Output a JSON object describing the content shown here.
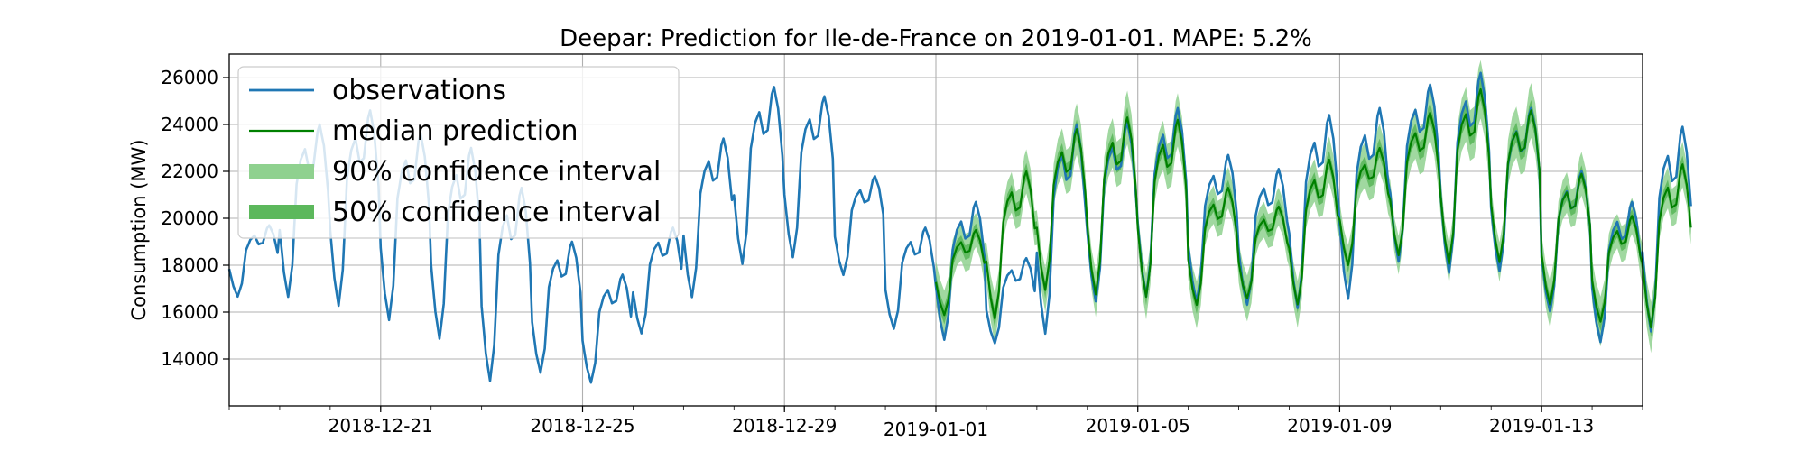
{
  "chart_data": {
    "type": "line",
    "title": "Deepar: Prediction for Ile-de-France on 2019-01-01. MAPE: 5.2%",
    "xlabel": "",
    "ylabel": "Consumption (MW)",
    "x_range": [
      "2018-12-18",
      "2019-01-15"
    ],
    "ylim": [
      12000,
      27000
    ],
    "y_ticks": [
      14000,
      16000,
      18000,
      20000,
      22000,
      24000,
      26000
    ],
    "x_ticks": [
      "2018-12-21",
      "2018-12-25",
      "2018-12-29",
      "2019-01-01",
      "2019-01-05",
      "2019-01-09",
      "2019-01-13"
    ],
    "grid": true,
    "legend_position": "top-left",
    "colors": {
      "observations": "#1f77b4",
      "median": "#008000",
      "ci90": "#8fd18f",
      "ci50": "#5cb85c"
    },
    "legend": [
      {
        "key": "observations",
        "label": "observations"
      },
      {
        "key": "median",
        "label": "median prediction"
      },
      {
        "key": "ci90",
        "label": "90% confidence interval"
      },
      {
        "key": "ci50",
        "label": "50% confidence interval"
      }
    ],
    "daily_observed": [
      {
        "date": "2018-12-18",
        "min": 16600,
        "max": 19700
      },
      {
        "date": "2018-12-19",
        "min": 16500,
        "max": 24000
      },
      {
        "date": "2018-12-20",
        "min": 16100,
        "max": 24600
      },
      {
        "date": "2018-12-21",
        "min": 15500,
        "max": 23600
      },
      {
        "date": "2018-12-22",
        "min": 14700,
        "max": 23000
      },
      {
        "date": "2018-12-23",
        "min": 12900,
        "max": 21300
      },
      {
        "date": "2018-12-24",
        "min": 13300,
        "max": 19000
      },
      {
        "date": "2018-12-25",
        "min": 12900,
        "max": 17600
      },
      {
        "date": "2018-12-26",
        "min": 15000,
        "max": 19600
      },
      {
        "date": "2018-12-27",
        "min": 16500,
        "max": 23400
      },
      {
        "date": "2018-12-28",
        "min": 17900,
        "max": 25600
      },
      {
        "date": "2018-12-29",
        "min": 18200,
        "max": 25200
      },
      {
        "date": "2018-12-30",
        "min": 17500,
        "max": 21800
      },
      {
        "date": "2018-12-31",
        "min": 15200,
        "max": 19600
      },
      {
        "date": "2019-01-01",
        "min": 14700,
        "max": 20700
      },
      {
        "date": "2019-01-02",
        "min": 14600,
        "max": 18300
      },
      {
        "date": "2019-01-03",
        "min": 14900,
        "max": 24000
      },
      {
        "date": "2019-01-04",
        "min": 16300,
        "max": 24100
      },
      {
        "date": "2019-01-05",
        "min": 16500,
        "max": 24700
      },
      {
        "date": "2019-01-06",
        "min": 16300,
        "max": 22700
      },
      {
        "date": "2019-01-07",
        "min": 16200,
        "max": 22100
      },
      {
        "date": "2019-01-08",
        "min": 16000,
        "max": 24400
      },
      {
        "date": "2019-01-09",
        "min": 16400,
        "max": 24700
      },
      {
        "date": "2019-01-10",
        "min": 18000,
        "max": 25700
      },
      {
        "date": "2019-01-11",
        "min": 17500,
        "max": 26200
      },
      {
        "date": "2019-01-12",
        "min": 17600,
        "max": 24700
      },
      {
        "date": "2019-01-13",
        "min": 15900,
        "max": 22000
      },
      {
        "date": "2019-01-14",
        "min": 14600,
        "max": 20700
      },
      {
        "date": "2019-01-15",
        "min": 15000,
        "max": 23900
      }
    ],
    "daily_median": [
      {
        "date": "2019-01-01",
        "min": 15800,
        "max": 19500
      },
      {
        "date": "2019-01-02",
        "min": 15600,
        "max": 22000
      },
      {
        "date": "2019-01-03",
        "min": 16800,
        "max": 23800
      },
      {
        "date": "2019-01-04",
        "min": 16600,
        "max": 24300
      },
      {
        "date": "2019-01-05",
        "min": 16500,
        "max": 24200
      },
      {
        "date": "2019-01-06",
        "min": 16200,
        "max": 21300
      },
      {
        "date": "2019-01-07",
        "min": 16500,
        "max": 20500
      },
      {
        "date": "2019-01-08",
        "min": 16200,
        "max": 22500
      },
      {
        "date": "2019-01-09",
        "min": 17900,
        "max": 23000
      },
      {
        "date": "2019-01-10",
        "min": 18300,
        "max": 24500
      },
      {
        "date": "2019-01-11",
        "min": 17900,
        "max": 25500
      },
      {
        "date": "2019-01-12",
        "min": 18000,
        "max": 24600
      },
      {
        "date": "2019-01-13",
        "min": 16200,
        "max": 21900
      },
      {
        "date": "2019-01-14",
        "min": 15500,
        "max": 20100
      },
      {
        "date": "2019-01-15",
        "min": 15200,
        "max": 22300
      }
    ]
  }
}
